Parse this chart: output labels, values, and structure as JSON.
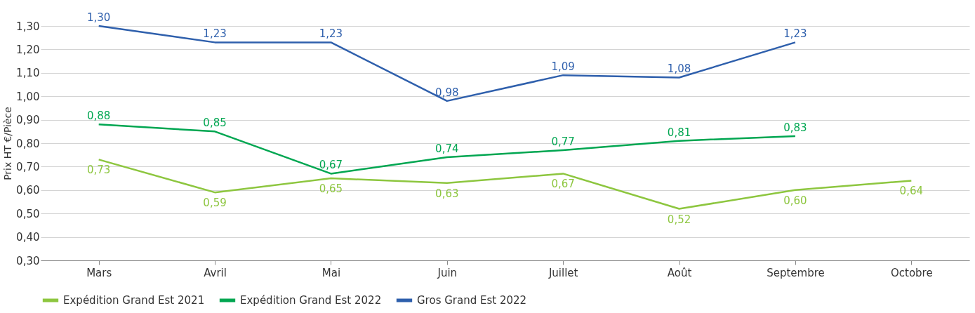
{
  "chart_data": {
    "type": "line",
    "ylabel": "Prix HT €/Pièce",
    "categories": [
      "Mars",
      "Avril",
      "Mai",
      "Juin",
      "Juillet",
      "Août",
      "Septembre",
      "Octobre"
    ],
    "series": [
      {
        "name": "Expédition Grand Est 2021",
        "color": "#8dc63f",
        "values": [
          0.73,
          0.59,
          0.65,
          0.63,
          0.67,
          0.52,
          0.6,
          0.64
        ],
        "value_labels": [
          "0,73",
          "0,59",
          "0,65",
          "0,63",
          "0,67",
          "0,52",
          "0,60",
          "0,64"
        ]
      },
      {
        "name": "Expédition Grand Est 2022",
        "color": "#00a651",
        "values": [
          0.88,
          0.85,
          0.67,
          0.74,
          0.77,
          0.81,
          0.83,
          null
        ],
        "value_labels": [
          "0,88",
          "0,85",
          "0,67",
          "0,74",
          "0,77",
          "0,81",
          "0,83",
          null
        ]
      },
      {
        "name": "Gros Grand Est 2022",
        "color": "#2e5fac",
        "values": [
          1.3,
          1.23,
          1.23,
          0.98,
          1.09,
          1.08,
          1.23,
          null
        ],
        "value_labels": [
          "1,30",
          "1,23",
          "1,23",
          "0,98",
          "1,09",
          "1,08",
          "1,23",
          null
        ]
      }
    ],
    "ylim": [
      0.3,
      1.3
    ],
    "yticks": [
      {
        "value": 0.3,
        "label": "0,30"
      },
      {
        "value": 0.4,
        "label": "0,40"
      },
      {
        "value": 0.5,
        "label": "0,50"
      },
      {
        "value": 0.6,
        "label": "0,60"
      },
      {
        "value": 0.7,
        "label": "0,70"
      },
      {
        "value": 0.8,
        "label": "0,80"
      },
      {
        "value": 0.9,
        "label": "0,90"
      },
      {
        "value": 1.0,
        "label": "1,00"
      },
      {
        "value": 1.1,
        "label": "1,10"
      },
      {
        "value": 1.2,
        "label": "1,20"
      },
      {
        "value": 1.3,
        "label": "1,30"
      }
    ],
    "grid": "y",
    "legend": "bottom",
    "marker": "none",
    "line_style": "solid"
  }
}
